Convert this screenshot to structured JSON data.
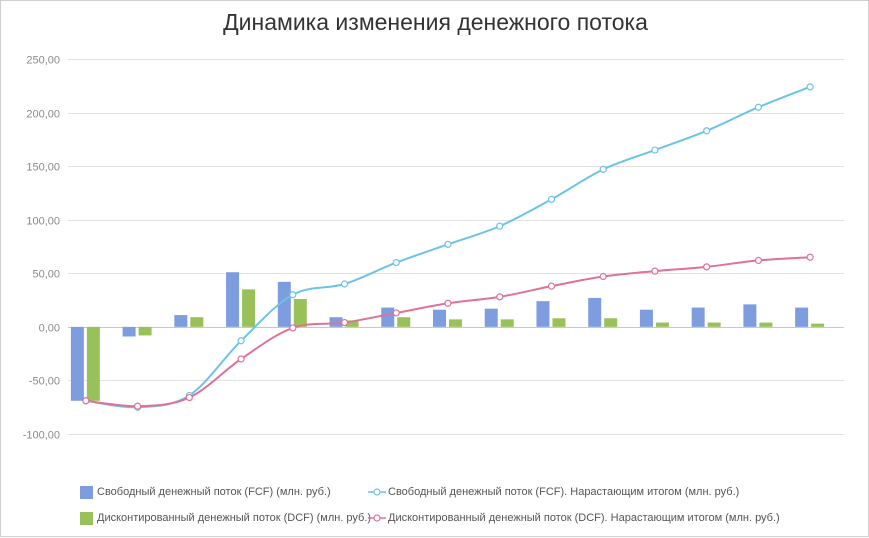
{
  "chart_data": {
    "type": "bar",
    "title": "Динамика изменения денежного потока",
    "xlabel": "",
    "ylabel": "",
    "ylim": [
      -100,
      250
    ],
    "yticks": [
      "250,00",
      "200,00",
      "150,00",
      "100,00",
      "50,00",
      "0,00",
      "-50,00",
      "-100,00"
    ],
    "ytick_values": [
      250,
      200,
      150,
      100,
      50,
      0,
      -50,
      -100
    ],
    "grid": true,
    "legend_position": "bottom",
    "x": [
      1,
      2,
      3,
      4,
      5,
      6,
      7,
      8,
      9,
      10,
      11,
      12,
      13,
      14,
      15
    ],
    "series": [
      {
        "name": "Свободный денежный поток (FCF) (млн. руб.)",
        "kind": "bar",
        "color": "#7e9ddf",
        "values": [
          -69,
          -9,
          11,
          51,
          42,
          9,
          18,
          16,
          17,
          24,
          27,
          16,
          18,
          21,
          18
        ]
      },
      {
        "name": "Дисконтированный денежный поток (DCF) (млн. руб.)",
        "kind": "bar",
        "color": "#99c15a",
        "values": [
          -69,
          -8,
          9,
          35,
          26,
          6,
          9,
          7,
          7,
          8,
          8,
          4,
          4,
          4,
          3
        ]
      },
      {
        "name": "Свободный денежный поток (FCF). Нарастающим итогом (млн. руб.)",
        "kind": "line",
        "color": "#6cc3e8",
        "values": [
          -69,
          -75,
          -64,
          -13,
          30,
          40,
          60,
          77,
          94,
          119,
          147,
          165,
          183,
          205,
          224
        ]
      },
      {
        "name": "Дисконтированный денежный поток (DCF). Нарастающим итогом (млн. руб.)",
        "kind": "line",
        "color": "#df7295",
        "values": [
          -69,
          -74,
          -66,
          -30,
          -1,
          4,
          13,
          22,
          28,
          38,
          47,
          52,
          56,
          62,
          65
        ]
      }
    ]
  }
}
